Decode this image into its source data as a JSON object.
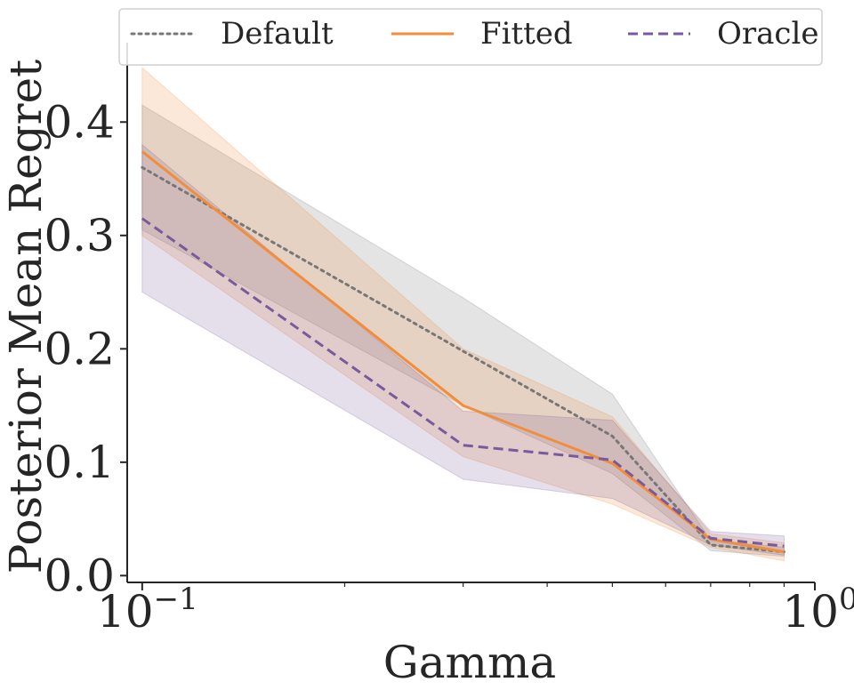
{
  "chart_data": {
    "type": "line",
    "title": "",
    "xlabel": "Gamma",
    "ylabel": "Posterior Mean Regret",
    "xscale": "log",
    "xlim": [
      0.095,
      1.0
    ],
    "ylim": [
      -0.006,
      0.47
    ],
    "x_ticks": [
      {
        "value": 0.1,
        "base": "10",
        "exp": "−1"
      },
      {
        "value": 1.0,
        "base": "10",
        "exp": "0"
      }
    ],
    "y_ticks": [
      {
        "value": 0.0,
        "label": "0.0"
      },
      {
        "value": 0.1,
        "label": "0.1"
      },
      {
        "value": 0.2,
        "label": "0.2"
      },
      {
        "value": 0.3,
        "label": "0.3"
      },
      {
        "value": 0.4,
        "label": "0.4"
      }
    ],
    "x": [
      0.1,
      0.3,
      0.5,
      0.7,
      0.9
    ],
    "legend_position": "top",
    "series": [
      {
        "name": "Default",
        "color": "#777777",
        "dash": "dotted",
        "values": [
          0.36,
          0.198,
          0.123,
          0.027,
          0.021
        ],
        "lower": [
          0.305,
          0.15,
          0.09,
          0.022,
          0.017
        ],
        "upper": [
          0.415,
          0.245,
          0.16,
          0.031,
          0.025
        ]
      },
      {
        "name": "Fitted",
        "color": "#f28e3b",
        "dash": "solid",
        "values": [
          0.374,
          0.15,
          0.099,
          0.032,
          0.021
        ],
        "lower": [
          0.3,
          0.105,
          0.063,
          0.025,
          0.013
        ],
        "upper": [
          0.448,
          0.2,
          0.14,
          0.037,
          0.029
        ]
      },
      {
        "name": "Oracle",
        "color": "#7b5a9c",
        "dash": "dashed",
        "values": [
          0.315,
          0.115,
          0.102,
          0.033,
          0.026
        ],
        "lower": [
          0.25,
          0.085,
          0.068,
          0.027,
          0.018
        ],
        "upper": [
          0.38,
          0.145,
          0.137,
          0.039,
          0.035
        ]
      }
    ]
  }
}
